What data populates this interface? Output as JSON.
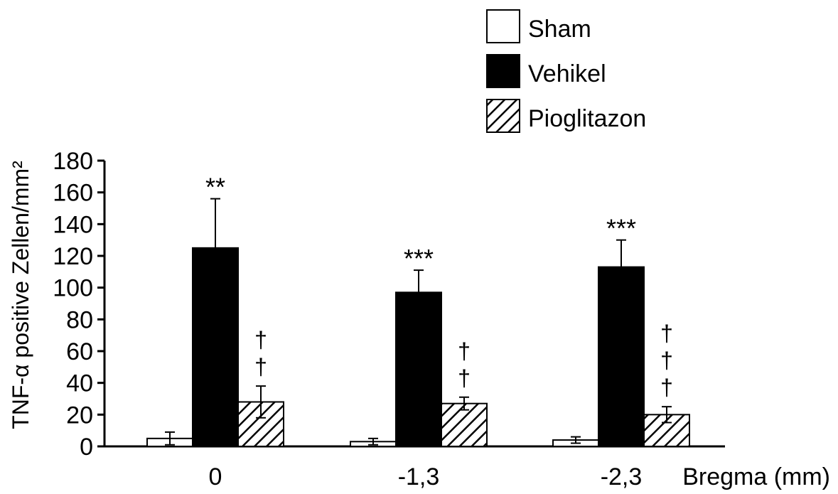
{
  "chart_data": {
    "type": "bar",
    "categories": [
      "0",
      "-1,3",
      "-2,3"
    ],
    "xlabel": "Bregma (mm)",
    "ylabel": "TNF-α positive Zellen/mm²",
    "ylim": [
      0,
      180
    ],
    "yticks": [
      0,
      20,
      40,
      60,
      80,
      100,
      120,
      140,
      160,
      180
    ],
    "grid": false,
    "legend_position": "top-right",
    "series": [
      {
        "name": "Sham",
        "values": [
          5,
          3,
          4
        ],
        "errors": [
          4,
          2,
          2
        ],
        "fill": "#ffffff",
        "pattern": "none"
      },
      {
        "name": "Vehikel",
        "values": [
          125,
          97,
          113
        ],
        "errors": [
          31,
          14,
          17
        ],
        "fill": "#000000",
        "pattern": "none"
      },
      {
        "name": "Pioglitazon",
        "values": [
          28,
          27,
          20
        ],
        "errors": [
          10,
          4,
          5
        ],
        "fill": "#ffffff",
        "pattern": "hatch"
      }
    ],
    "annotations": [
      {
        "category_index": 0,
        "series_index": 1,
        "text": "**"
      },
      {
        "category_index": 1,
        "series_index": 1,
        "text": "***"
      },
      {
        "category_index": 2,
        "series_index": 1,
        "text": "***"
      },
      {
        "category_index": 0,
        "series_index": 2,
        "symbols": [
          "†",
          "†"
        ]
      },
      {
        "category_index": 1,
        "series_index": 2,
        "symbols": [
          "†",
          "†"
        ]
      },
      {
        "category_index": 2,
        "series_index": 2,
        "symbols": [
          "†",
          "†",
          "†"
        ]
      }
    ]
  }
}
